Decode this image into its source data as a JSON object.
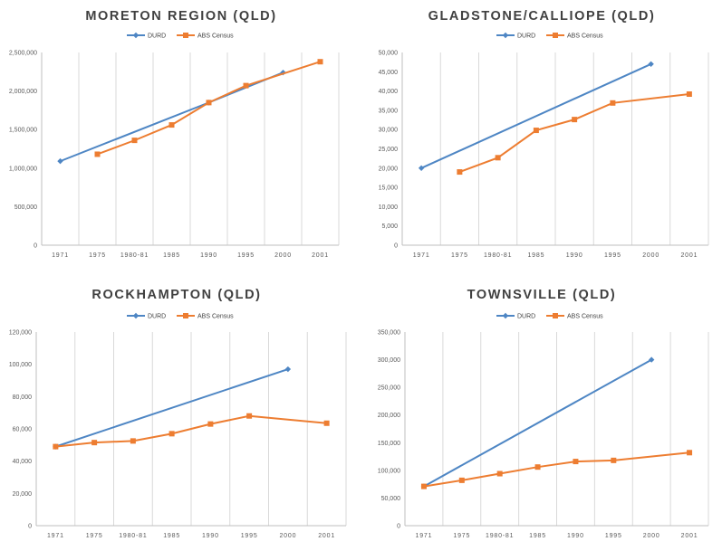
{
  "colors": {
    "durd": "#4e86c4",
    "abs": "#ed7d31",
    "grid": "#d9d9d9",
    "axis": "#bfbfbf",
    "title": "#404040"
  },
  "chart_data": [
    {
      "type": "line",
      "title": "MORETON REGION (QLD)",
      "categories": [
        "1971",
        "1975",
        "1980-81",
        "1985",
        "1990",
        "1995",
        "2000",
        "2001"
      ],
      "ylim": [
        0,
        2500000
      ],
      "yticks": [
        "0",
        "500,000",
        "1,000,000",
        "1,500,000",
        "2,000,000",
        "2,500,000"
      ],
      "series": [
        {
          "name": "DURD",
          "color": "#4e86c4",
          "marker": "diamond",
          "values": [
            1090000,
            null,
            null,
            null,
            1850000,
            null,
            2240000,
            null
          ]
        },
        {
          "name": "ABS Census",
          "color": "#ed7d31",
          "marker": "square",
          "values": [
            null,
            1180000,
            1360000,
            1560000,
            1850000,
            2070000,
            null,
            2380000
          ]
        }
      ]
    },
    {
      "type": "line",
      "title": "GLADSTONE/CALLIOPE (QLD)",
      "categories": [
        "1971",
        "1975",
        "1980-81",
        "1985",
        "1990",
        "1995",
        "2000",
        "2001"
      ],
      "ylim": [
        0,
        50000
      ],
      "yticks": [
        "0",
        "5,000",
        "10,000",
        "15,000",
        "20,000",
        "25,000",
        "30,000",
        "35,000",
        "40,000",
        "45,000",
        "50,000"
      ],
      "series": [
        {
          "name": "DURD",
          "color": "#4e86c4",
          "marker": "diamond",
          "values": [
            20000,
            null,
            null,
            null,
            null,
            null,
            47000,
            null
          ]
        },
        {
          "name": "ABS Census",
          "color": "#ed7d31",
          "marker": "square",
          "values": [
            null,
            19000,
            22700,
            29800,
            32600,
            36900,
            null,
            39200
          ]
        }
      ]
    },
    {
      "type": "line",
      "title": "ROCKHAMPTON (QLD)",
      "categories": [
        "1971",
        "1975",
        "1980-81",
        "1985",
        "1990",
        "1995",
        "2000",
        "2001"
      ],
      "ylim": [
        0,
        120000
      ],
      "yticks": [
        "0",
        "20,000",
        "40,000",
        "60,000",
        "80,000",
        "100,000",
        "120,000"
      ],
      "series": [
        {
          "name": "DURD",
          "color": "#4e86c4",
          "marker": "diamond",
          "values": [
            49000,
            null,
            null,
            null,
            null,
            null,
            97000,
            null
          ]
        },
        {
          "name": "ABS Census",
          "color": "#ed7d31",
          "marker": "square",
          "values": [
            49000,
            51500,
            52500,
            57000,
            63000,
            68000,
            null,
            63500
          ]
        }
      ]
    },
    {
      "type": "line",
      "title": "TOWNSVILLE (QLD)",
      "categories": [
        "1971",
        "1975",
        "1980-81",
        "1985",
        "1990",
        "1995",
        "2000",
        "2001"
      ],
      "ylim": [
        0,
        350000
      ],
      "yticks": [
        "0",
        "50,000",
        "100,000",
        "150,000",
        "200,000",
        "250,000",
        "300,000",
        "350,000"
      ],
      "series": [
        {
          "name": "DURD",
          "color": "#4e86c4",
          "marker": "diamond",
          "values": [
            71000,
            null,
            null,
            null,
            null,
            null,
            300000,
            null
          ]
        },
        {
          "name": "ABS Census",
          "color": "#ed7d31",
          "marker": "square",
          "values": [
            71000,
            82000,
            94000,
            106000,
            116000,
            118000,
            null,
            132000
          ]
        }
      ]
    }
  ]
}
